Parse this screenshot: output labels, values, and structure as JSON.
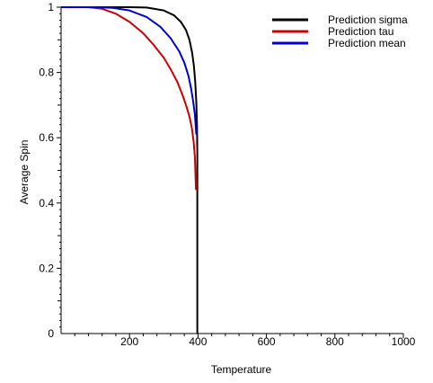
{
  "chart_data": {
    "type": "line",
    "xlabel": "Temperature",
    "ylabel": "Average Spin",
    "xlim": [
      0,
      1000
    ],
    "ylim": [
      0,
      1
    ],
    "x_ticks": [
      {
        "value": 200,
        "label": "200"
      },
      {
        "value": 400,
        "label": "400"
      },
      {
        "value": 600,
        "label": "600"
      },
      {
        "value": 800,
        "label": "800"
      },
      {
        "value": 1000,
        "label": "1000"
      }
    ],
    "y_ticks": [
      {
        "value": 0,
        "label": "0"
      },
      {
        "value": 0.2,
        "label": "0.2"
      },
      {
        "value": 0.4,
        "label": "0.4"
      },
      {
        "value": 0.6,
        "label": "0.6"
      },
      {
        "value": 0.8,
        "label": "0.8"
      },
      {
        "value": 1,
        "label": "1"
      }
    ],
    "grid": false,
    "legend_position": "top-right",
    "series": [
      {
        "name": "Prediction sigma",
        "color": "#000000",
        "x": [
          0,
          100,
          200,
          250,
          300,
          330,
          350,
          365,
          375,
          383,
          388,
          392,
          395,
          397,
          398,
          398,
          398
        ],
        "y": [
          1.0,
          1.0,
          1.0,
          0.999,
          0.99,
          0.975,
          0.955,
          0.93,
          0.9,
          0.86,
          0.82,
          0.77,
          0.71,
          0.64,
          0.56,
          0.3,
          0.0
        ]
      },
      {
        "name": "Prediction tau",
        "color": "#cc0000",
        "x": [
          0,
          80,
          120,
          160,
          200,
          240,
          270,
          300,
          320,
          340,
          355,
          365,
          375,
          382,
          387,
          391,
          394
        ],
        "y": [
          1.0,
          1.0,
          0.995,
          0.98,
          0.955,
          0.92,
          0.885,
          0.845,
          0.81,
          0.77,
          0.73,
          0.7,
          0.665,
          0.63,
          0.59,
          0.54,
          0.44
        ]
      },
      {
        "name": "Prediction mean",
        "color": "#0000cc",
        "x": [
          0,
          100,
          150,
          200,
          250,
          290,
          320,
          345,
          360,
          372,
          380,
          386,
          391,
          395
        ],
        "y": [
          1.0,
          1.0,
          0.998,
          0.99,
          0.97,
          0.94,
          0.905,
          0.865,
          0.83,
          0.79,
          0.75,
          0.71,
          0.67,
          0.61
        ]
      }
    ]
  }
}
